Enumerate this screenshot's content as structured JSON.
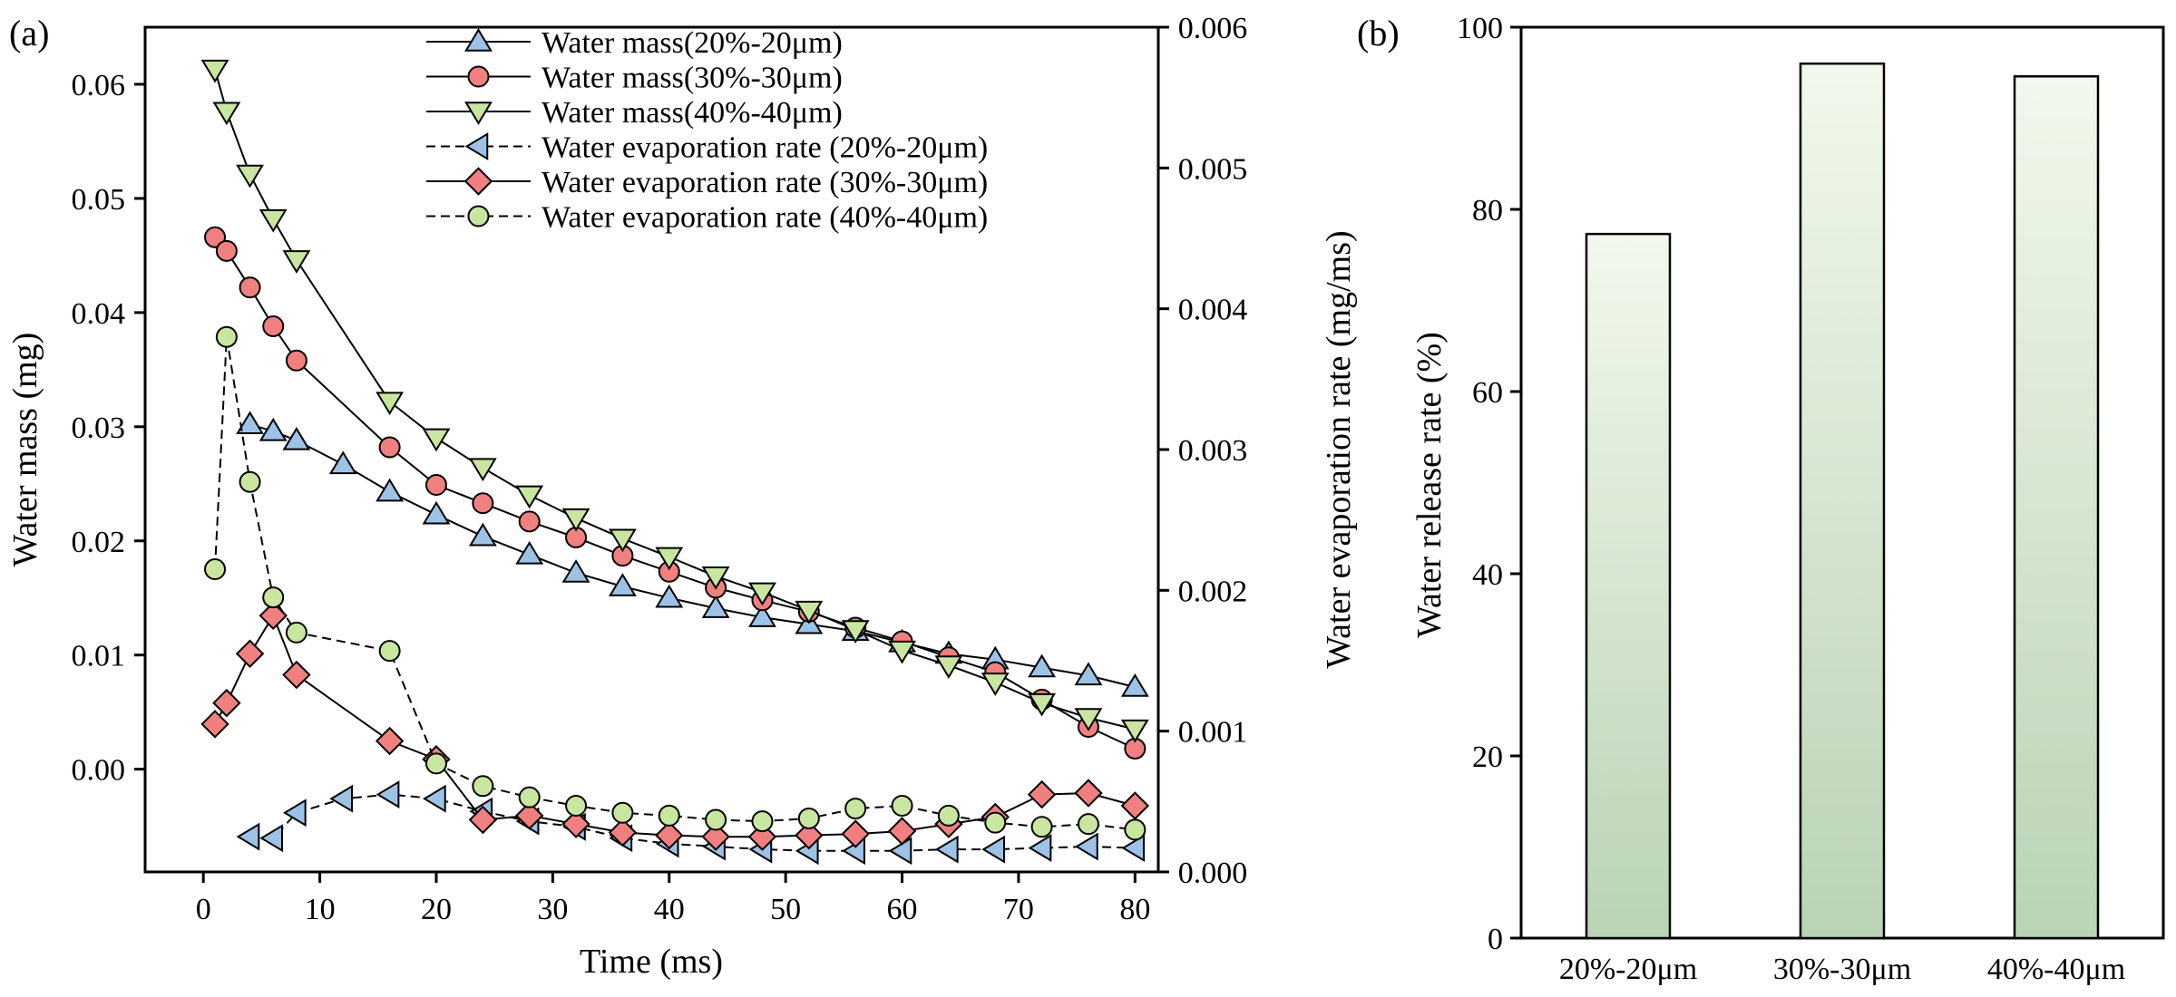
{
  "chart_data": [
    {
      "panel_label": "(a)",
      "type": "line",
      "xlabel": "Time (ms)",
      "ylabel": "Water mass (mg)",
      "y2label": "Water evaporation rate (mg/ms)",
      "xlim": [
        -5,
        82
      ],
      "ylim": [
        -0.009,
        0.065
      ],
      "y2lim": [
        0.0,
        0.006
      ],
      "x_ticks": [
        0,
        10,
        20,
        30,
        40,
        50,
        60,
        70,
        80
      ],
      "y_ticks": [
        0.0,
        0.01,
        0.02,
        0.03,
        0.04,
        0.05,
        0.06
      ],
      "y_tick_labels": [
        "0.00",
        "0.01",
        "0.02",
        "0.03",
        "0.04",
        "0.05",
        "0.06"
      ],
      "y2_ticks": [
        0.0,
        0.001,
        0.002,
        0.003,
        0.004,
        0.005,
        0.006
      ],
      "y2_tick_labels": [
        "0.000",
        "0.001",
        "0.002",
        "0.003",
        "0.004",
        "0.005",
        "0.006"
      ],
      "legend_position": "top-right",
      "series": [
        {
          "name": "Water mass(20%-20μm)",
          "axis": "left",
          "marker": "triangle-up",
          "color": "#9cc3e6",
          "line": "solid",
          "x": [
            4,
            6,
            8,
            12,
            16,
            20,
            24,
            28,
            32,
            36,
            40,
            44,
            48,
            52,
            56,
            60,
            64,
            68,
            72,
            76,
            80
          ],
          "y": [
            0.0302,
            0.0296,
            0.0288,
            0.0267,
            0.0243,
            0.0223,
            0.0204,
            0.0188,
            0.0172,
            0.016,
            0.015,
            0.0141,
            0.0133,
            0.0127,
            0.0121,
            0.0111,
            0.0101,
            0.0096,
            0.0089,
            0.0082,
            0.0072
          ]
        },
        {
          "name": "Water mass(30%-30μm)",
          "axis": "left",
          "marker": "circle",
          "color": "#f08080",
          "line": "solid",
          "x": [
            1,
            2,
            4,
            6,
            8,
            16,
            20,
            24,
            28,
            32,
            36,
            40,
            44,
            48,
            52,
            56,
            60,
            64,
            68,
            72,
            76,
            80
          ],
          "y": [
            0.0466,
            0.0454,
            0.0422,
            0.0388,
            0.0358,
            0.0282,
            0.0249,
            0.0233,
            0.0217,
            0.0203,
            0.0187,
            0.0173,
            0.0159,
            0.0148,
            0.0138,
            0.0124,
            0.0112,
            0.0098,
            0.0085,
            0.0061,
            0.0037,
            0.0018
          ]
        },
        {
          "name": "Water mass(40%-40μm)",
          "axis": "left",
          "marker": "triangle-down",
          "color": "#c8e6a0",
          "line": "solid",
          "x": [
            1,
            2,
            4,
            6,
            8,
            16,
            20,
            24,
            28,
            32,
            36,
            40,
            44,
            48,
            52,
            56,
            60,
            64,
            68,
            72,
            76,
            80
          ],
          "y": [
            0.0613,
            0.0576,
            0.0521,
            0.0482,
            0.0446,
            0.0322,
            0.029,
            0.0264,
            0.024,
            0.022,
            0.0202,
            0.0186,
            0.0169,
            0.0155,
            0.0139,
            0.0122,
            0.0104,
            0.0091,
            0.0076,
            0.0058,
            0.0045,
            0.0035
          ]
        },
        {
          "name": "Water evaporation rate (20%-20μm)",
          "axis": "right",
          "marker": "triangle-left",
          "color": "#9cc3e6",
          "line": "dashed",
          "x": [
            4,
            6,
            8,
            12,
            16,
            20,
            24,
            28,
            32,
            36,
            40,
            44,
            48,
            52,
            56,
            60,
            64,
            68,
            72,
            76,
            80
          ],
          "y": [
            0.00025,
            0.00024,
            0.00042,
            0.00052,
            0.00055,
            0.00052,
            0.00043,
            0.00036,
            0.00032,
            0.00024,
            0.0002,
            0.00018,
            0.00016,
            0.00015,
            0.00015,
            0.00015,
            0.00016,
            0.00016,
            0.00017,
            0.00018,
            0.00017
          ]
        },
        {
          "name": "Water evaporation rate (30%-30μm)",
          "axis": "right",
          "marker": "diamond",
          "color": "#f08080",
          "line": "solid",
          "x": [
            1,
            2,
            4,
            6,
            8,
            16,
            20,
            24,
            28,
            32,
            36,
            40,
            44,
            48,
            52,
            56,
            60,
            64,
            68,
            72,
            76,
            80
          ],
          "y": [
            0.00105,
            0.0012,
            0.00155,
            0.00182,
            0.0014,
            0.00093,
            0.0008,
            0.00037,
            0.0004,
            0.00034,
            0.00028,
            0.00026,
            0.00025,
            0.00025,
            0.00026,
            0.00027,
            0.00029,
            0.00034,
            0.00039,
            0.00055,
            0.00056,
            0.00047
          ]
        },
        {
          "name": "Water evaporation rate (40%-40μm)",
          "axis": "right",
          "marker": "circle",
          "color": "#c8e6a0",
          "line": "dashed",
          "x": [
            1,
            2,
            4,
            6,
            8,
            16,
            20,
            24,
            28,
            32,
            36,
            40,
            44,
            48,
            52,
            56,
            60,
            64,
            68,
            72,
            76,
            80
          ],
          "y": [
            0.00215,
            0.0038,
            0.00277,
            0.00195,
            0.0017,
            0.00157,
            0.00077,
            0.00061,
            0.00053,
            0.00047,
            0.00042,
            0.0004,
            0.00037,
            0.00036,
            0.00038,
            0.00045,
            0.00047,
            0.0004,
            0.00035,
            0.00032,
            0.00034,
            0.0003
          ]
        }
      ]
    },
    {
      "panel_label": "(b)",
      "type": "bar",
      "categories": [
        "20%-20μm",
        "30%-30μm",
        "40%-40μm"
      ],
      "values": [
        77.3,
        96.0,
        94.6
      ],
      "xlabel": "",
      "ylabel": "Water release rate (%)",
      "ylim": [
        0,
        100
      ],
      "y_ticks": [
        0,
        20,
        40,
        60,
        80,
        100
      ],
      "bar_gradient": {
        "top": "#f2f8ec",
        "bottom": "#b9d3b4"
      }
    }
  ]
}
